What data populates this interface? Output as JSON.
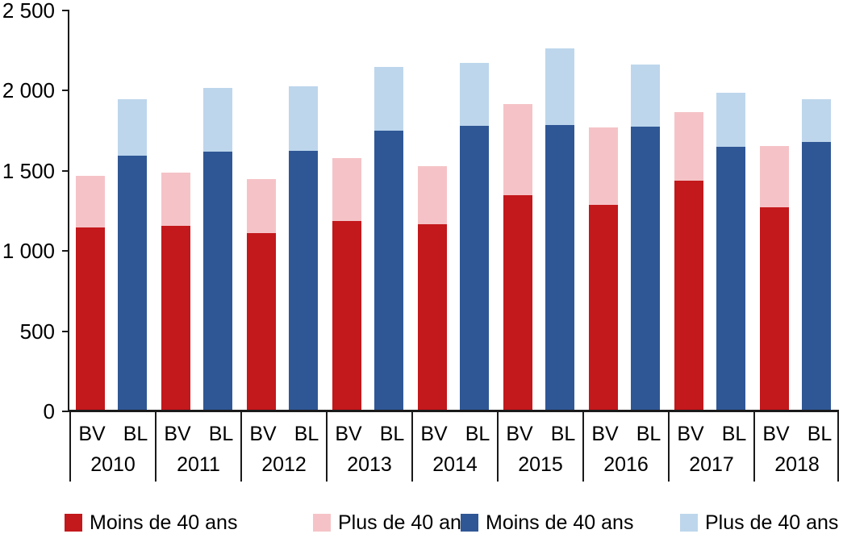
{
  "chart_data": {
    "type": "bar",
    "stacked": true,
    "title": "",
    "xlabel": "",
    "ylabel": "",
    "grid": false,
    "legend_position": "bottom",
    "ylim": [
      0,
      2500
    ],
    "yticks": [
      0,
      500,
      1000,
      1500,
      2000,
      2500
    ],
    "ytick_labels": [
      "0",
      "500",
      "1 000",
      "1 500",
      "2 000",
      "2 500"
    ],
    "categories": [
      "2010",
      "2011",
      "2012",
      "2013",
      "2014",
      "2015",
      "2016",
      "2017",
      "2018"
    ],
    "bar_labels": [
      "BV",
      "BL"
    ],
    "series": [
      {
        "name": "Moins de 40 ans",
        "bar": "BV",
        "color": "#c3181c",
        "values": [
          1145,
          1155,
          1110,
          1185,
          1165,
          1350,
          1290,
          1440,
          1275
        ]
      },
      {
        "name": "Plus de 40 ans",
        "bar": "BV",
        "color": "#f5c3c7",
        "values": [
          325,
          335,
          340,
          395,
          365,
          565,
          480,
          425,
          380
        ]
      },
      {
        "name": "Moins de 40 ans",
        "bar": "BL",
        "color": "#2f5795",
        "values": [
          1595,
          1620,
          1625,
          1750,
          1780,
          1785,
          1775,
          1650,
          1680
        ]
      },
      {
        "name": "Plus de 40 ans",
        "bar": "BL",
        "color": "#bdd6ec",
        "values": [
          350,
          395,
          400,
          400,
          395,
          480,
          390,
          335,
          265
        ]
      }
    ],
    "legend": [
      {
        "label": "Moins de 40 ans",
        "color": "#c3181c"
      },
      {
        "label": "Plus de 40 ans",
        "color": "#f5c3c7"
      },
      {
        "label": "Moins de 40 ans",
        "color": "#2f5795"
      },
      {
        "label": "Plus de 40 ans",
        "color": "#bdd6ec"
      }
    ]
  }
}
